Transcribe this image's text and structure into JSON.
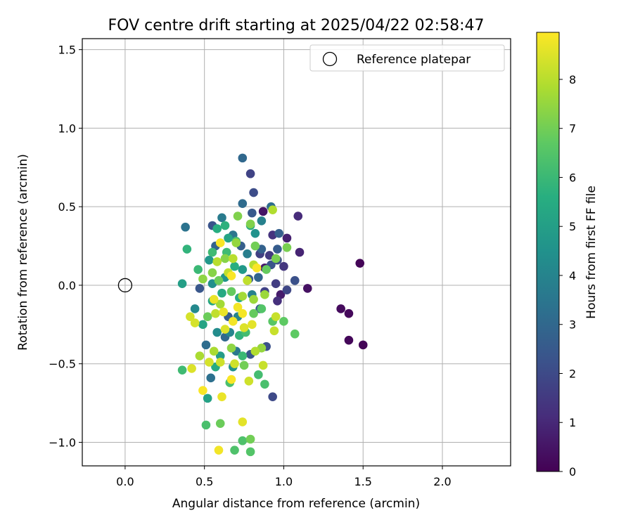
{
  "chart_data": {
    "type": "scatter",
    "title": "FOV centre drift starting at 2025/04/22 02:58:47",
    "xlabel": "Angular distance from reference (arcmin)",
    "ylabel": "Rotation from reference (arcmin)",
    "colorbar_label": "Hours from first FF file",
    "xlim": [
      -0.27,
      2.43
    ],
    "ylim": [
      -1.15,
      1.57
    ],
    "clim": [
      0,
      8.96
    ],
    "x_ticks": [
      0.0,
      0.5,
      1.0,
      1.5,
      2.0
    ],
    "x_tick_labels": [
      "0.0",
      "0.5",
      "1.0",
      "1.5",
      "2.0"
    ],
    "y_ticks": [
      -1.0,
      -0.5,
      0.0,
      0.5,
      1.0,
      1.5
    ],
    "y_tick_labels": [
      "−1.0",
      "−0.5",
      "0.0",
      "0.5",
      "1.0",
      "1.5"
    ],
    "c_ticks": [
      0,
      1,
      2,
      3,
      4,
      5,
      6,
      7,
      8
    ],
    "c_tick_labels": [
      "0",
      "1",
      "2",
      "3",
      "4",
      "5",
      "6",
      "7",
      "8"
    ],
    "grid": true,
    "colormap": "viridis",
    "legend": {
      "placement": "upper right",
      "entries": [
        "Reference platepar"
      ]
    },
    "reference_point": {
      "name": "Reference platepar",
      "x": 0.0,
      "y": 0.0
    },
    "points": [
      [
        1.48,
        0.14,
        0.1
      ],
      [
        1.5,
        -0.38,
        0.1
      ],
      [
        1.41,
        -0.35,
        0.15
      ],
      [
        1.41,
        -0.18,
        0.2
      ],
      [
        1.36,
        -0.15,
        0.25
      ],
      [
        1.15,
        -0.02,
        0.4
      ],
      [
        0.87,
        0.47,
        0.5
      ],
      [
        0.88,
        0.11,
        0.6
      ],
      [
        0.98,
        -0.06,
        0.7
      ],
      [
        1.02,
        0.3,
        0.8
      ],
      [
        1.1,
        0.21,
        0.9
      ],
      [
        1.09,
        0.44,
        1.1
      ],
      [
        0.96,
        -0.1,
        1.2
      ],
      [
        0.93,
        0.32,
        1.3
      ],
      [
        1.0,
        0.12,
        1.4
      ],
      [
        0.91,
        0.19,
        1.5
      ],
      [
        0.95,
        0.01,
        1.6
      ],
      [
        0.85,
        0.2,
        1.7
      ],
      [
        0.88,
        -0.04,
        1.8
      ],
      [
        1.02,
        -0.03,
        1.9
      ],
      [
        0.93,
        -0.71,
        2.0
      ],
      [
        0.79,
        0.71,
        1.8
      ],
      [
        0.96,
        0.16,
        2.1
      ],
      [
        0.89,
        -0.39,
        2.2
      ],
      [
        0.81,
        0.59,
        2.1
      ],
      [
        0.92,
        0.13,
        2.3
      ],
      [
        1.07,
        0.03,
        2.2
      ],
      [
        0.79,
        -0.44,
        2.4
      ],
      [
        0.85,
        -0.15,
        2.5
      ],
      [
        0.96,
        0.23,
        2.6
      ],
      [
        0.97,
        0.33,
        2.7
      ],
      [
        0.55,
        0.38,
        2.3
      ],
      [
        0.47,
        -0.02,
        2.4
      ],
      [
        0.78,
        0.04,
        2.6
      ],
      [
        0.57,
        0.25,
        2.8
      ],
      [
        0.84,
        0.05,
        2.9
      ],
      [
        0.73,
        0.25,
        2.7
      ],
      [
        0.86,
        0.23,
        2.8
      ],
      [
        0.8,
        0.46,
        2.5
      ],
      [
        0.65,
        -0.2,
        2.6
      ],
      [
        0.74,
        0.81,
        3.0
      ],
      [
        0.74,
        0.52,
        3.1
      ],
      [
        0.92,
        0.5,
        3.2
      ],
      [
        0.38,
        0.37,
        3.4
      ],
      [
        0.51,
        -0.38,
        3.2
      ],
      [
        0.54,
        -0.59,
        3.3
      ],
      [
        0.63,
        -0.33,
        3.0
      ],
      [
        0.68,
        0.32,
        3.5
      ],
      [
        0.7,
        -0.42,
        3.6
      ],
      [
        0.77,
        0.2,
        3.8
      ],
      [
        0.86,
        0.41,
        3.9
      ],
      [
        0.61,
        0.43,
        3.7
      ],
      [
        0.71,
        -0.2,
        4.0
      ],
      [
        0.66,
        -0.3,
        4.1
      ],
      [
        0.8,
        -0.06,
        3.9
      ],
      [
        0.44,
        -0.15,
        4.2
      ],
      [
        0.58,
        -0.3,
        4.3
      ],
      [
        0.55,
        0.01,
        4.4
      ],
      [
        0.82,
        0.33,
        4.5
      ],
      [
        0.63,
        0.05,
        4.6
      ],
      [
        0.68,
        -0.52,
        4.5
      ],
      [
        0.53,
        0.16,
        4.7
      ],
      [
        0.74,
        0.1,
        4.8
      ],
      [
        0.6,
        -0.45,
        4.9
      ],
      [
        0.36,
        0.01,
        5.0
      ],
      [
        0.52,
        -0.72,
        5.1
      ],
      [
        0.49,
        -0.25,
        5.2
      ],
      [
        0.55,
        -0.1,
        5.3
      ],
      [
        0.72,
        -0.08,
        5.4
      ],
      [
        0.79,
        0.38,
        5.5
      ],
      [
        0.58,
        0.36,
        5.6
      ],
      [
        0.65,
        0.3,
        5.2
      ],
      [
        0.61,
        -0.05,
        5.4
      ],
      [
        0.69,
        0.12,
        5.6
      ],
      [
        0.57,
        -0.52,
        5.5
      ],
      [
        0.63,
        0.38,
        5.7
      ],
      [
        0.72,
        -0.32,
        5.8
      ],
      [
        0.39,
        0.23,
        5.8
      ],
      [
        0.46,
        0.1,
        6.0
      ],
      [
        0.74,
        -0.45,
        6.0
      ],
      [
        0.36,
        -0.54,
        6.1
      ],
      [
        0.55,
        0.21,
        6.1
      ],
      [
        0.64,
        0.21,
        6.1
      ],
      [
        0.7,
        0.28,
        6.2
      ],
      [
        0.76,
        -0.3,
        6.2
      ],
      [
        0.84,
        -0.57,
        6.2
      ],
      [
        0.88,
        -0.63,
        6.3
      ],
      [
        0.51,
        -0.89,
        6.3
      ],
      [
        0.66,
        -0.62,
        6.3
      ],
      [
        0.69,
        -1.05,
        6.4
      ],
      [
        0.74,
        -0.99,
        6.4
      ],
      [
        0.79,
        -1.06,
        6.5
      ],
      [
        0.86,
        -0.15,
        6.5
      ],
      [
        0.93,
        -0.23,
        6.6
      ],
      [
        1.0,
        -0.23,
        6.7
      ],
      [
        1.07,
        -0.31,
        6.7
      ],
      [
        0.89,
        0.1,
        6.8
      ],
      [
        0.81,
        -0.18,
        6.8
      ],
      [
        0.67,
        -0.04,
        6.8
      ],
      [
        0.59,
        0.03,
        6.9
      ],
      [
        0.52,
        -0.2,
        6.9
      ],
      [
        0.6,
        -0.88,
        6.9
      ],
      [
        0.79,
        -0.98,
        7.0
      ],
      [
        0.75,
        -0.51,
        7.0
      ],
      [
        0.82,
        0.25,
        7.0
      ],
      [
        0.95,
        0.17,
        7.1
      ],
      [
        1.02,
        0.24,
        7.1
      ],
      [
        0.79,
        0.39,
        7.2
      ],
      [
        0.71,
        0.44,
        7.2
      ],
      [
        0.63,
        0.17,
        7.3
      ],
      [
        0.55,
        0.08,
        7.3
      ],
      [
        0.49,
        0.04,
        7.4
      ],
      [
        0.67,
        -0.4,
        7.4
      ],
      [
        0.86,
        -0.4,
        7.5
      ],
      [
        0.7,
        0.27,
        7.5
      ],
      [
        0.81,
        -0.09,
        7.6
      ],
      [
        0.88,
        -0.06,
        7.6
      ],
      [
        0.6,
        -0.12,
        7.7
      ],
      [
        0.74,
        -0.07,
        7.7
      ],
      [
        0.56,
        -0.42,
        7.8
      ],
      [
        0.47,
        -0.45,
        7.8
      ],
      [
        0.82,
        -0.42,
        7.9
      ],
      [
        0.93,
        0.48,
        7.9
      ],
      [
        0.68,
        0.17,
        8.0
      ],
      [
        0.58,
        0.15,
        8.0
      ],
      [
        0.81,
        0.13,
        8.0
      ],
      [
        0.77,
        0.03,
        8.1
      ],
      [
        0.65,
        0.08,
        8.1
      ],
      [
        0.57,
        -0.18,
        8.1
      ],
      [
        0.94,
        -0.29,
        8.2
      ],
      [
        0.95,
        -0.2,
        8.2
      ],
      [
        0.87,
        -0.51,
        8.2
      ],
      [
        0.78,
        -0.61,
        8.3
      ],
      [
        0.69,
        -0.5,
        8.3
      ],
      [
        0.6,
        -0.49,
        8.3
      ],
      [
        0.53,
        -0.49,
        8.4
      ],
      [
        0.44,
        -0.24,
        8.4
      ],
      [
        0.41,
        -0.2,
        8.4
      ],
      [
        0.42,
        -0.53,
        8.5
      ],
      [
        0.63,
        -0.28,
        8.5
      ],
      [
        0.75,
        -0.27,
        8.5
      ],
      [
        0.8,
        -0.25,
        8.6
      ],
      [
        0.74,
        -0.87,
        8.6
      ],
      [
        0.61,
        -0.71,
        8.7
      ],
      [
        0.56,
        -0.09,
        8.7
      ],
      [
        0.62,
        -0.17,
        8.7
      ],
      [
        0.71,
        -0.14,
        8.8
      ],
      [
        0.68,
        -0.23,
        8.8
      ],
      [
        0.59,
        -1.05,
        8.8
      ],
      [
        0.49,
        -0.67,
        8.9
      ],
      [
        0.67,
        -0.6,
        8.9
      ],
      [
        0.6,
        0.27,
        8.9
      ],
      [
        0.83,
        0.11,
        8.9
      ],
      [
        0.74,
        -0.18,
        8.85
      ],
      [
        0.67,
        0.06,
        8.9
      ]
    ]
  }
}
